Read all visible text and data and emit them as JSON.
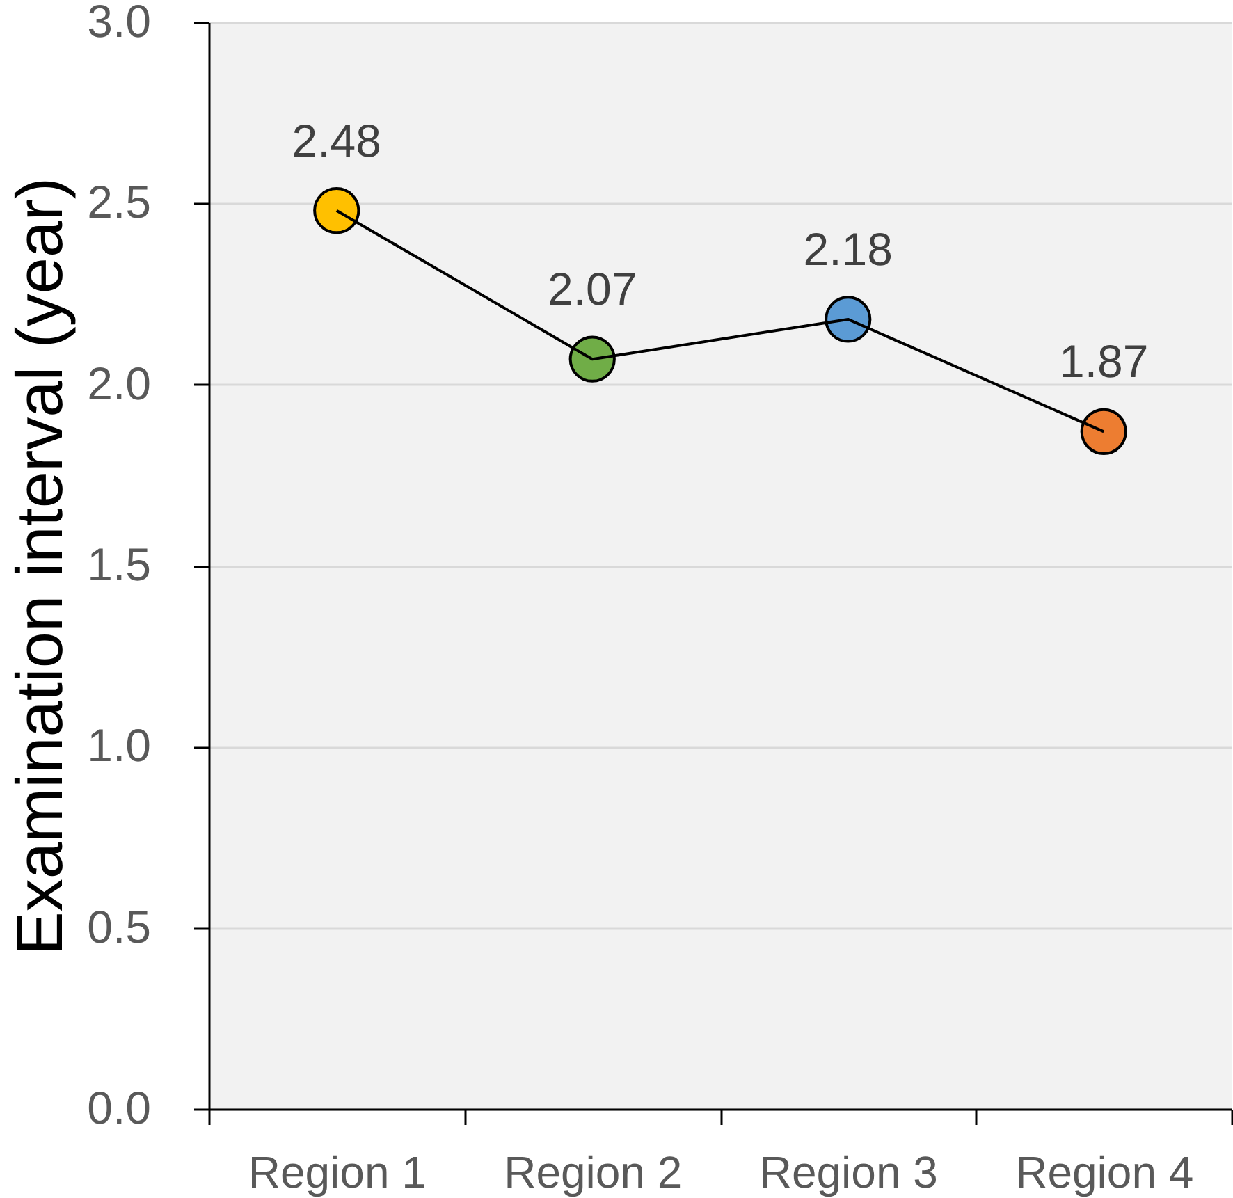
{
  "chart_data": {
    "type": "line",
    "ylabel": "Examination interval (year)",
    "categories": [
      "Region 1",
      "Region 2",
      "Region 3",
      "Region 4"
    ],
    "values": [
      2.48,
      2.07,
      2.18,
      1.87
    ],
    "color": "#000000",
    "colors": [
      "#ffc000",
      "#70ad47",
      "#5b9bd5",
      "#ed7d31"
    ],
    "marker": "circle",
    "data_labels": true,
    "ylim": [
      0,
      3
    ],
    "yticks": [
      {
        "value": 0,
        "label": "0.0"
      },
      0.5,
      {
        "value": 1,
        "label": "1.0"
      },
      1.5,
      {
        "value": 2,
        "label": "2.0"
      },
      2.5,
      {
        "value": 3,
        "label": "3.0"
      }
    ],
    "grid": "y"
  }
}
